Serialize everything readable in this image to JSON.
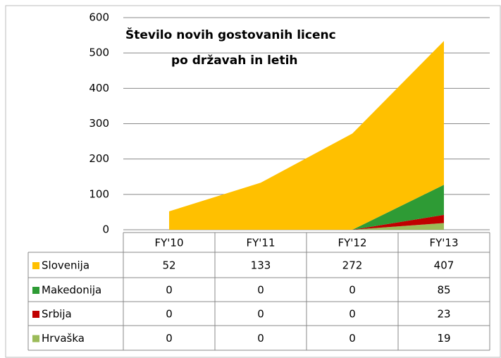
{
  "chart_data": {
    "type": "stacked_area",
    "title": [
      "Število novih gostovanih licenc",
      "po državah in letih"
    ],
    "categories": [
      "FY'10",
      "FY'11",
      "FY'12",
      "FY'13"
    ],
    "series": [
      {
        "name": "Slovenija",
        "color": "#ffc000",
        "values": [
          52,
          133,
          272,
          407
        ]
      },
      {
        "name": "Makedonija",
        "color": "#2e9b35",
        "values": [
          0,
          0,
          0,
          85
        ]
      },
      {
        "name": "Srbija",
        "color": "#c00000",
        "values": [
          0,
          0,
          0,
          23
        ]
      },
      {
        "name": "Hrvaška",
        "color": "#9bbb59",
        "values": [
          0,
          0,
          0,
          19
        ]
      }
    ],
    "ylim": [
      0,
      600
    ],
    "yticks": [
      0,
      100,
      200,
      300,
      400,
      500,
      600
    ],
    "grid": true
  }
}
